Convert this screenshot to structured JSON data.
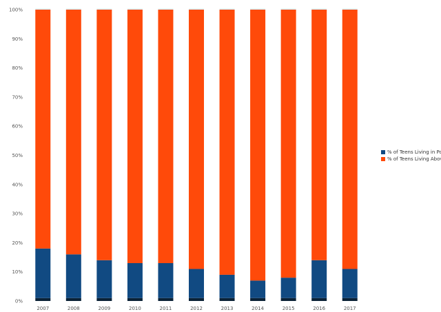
{
  "chart_data": {
    "type": "bar",
    "stacked": true,
    "title": "",
    "xlabel": "",
    "ylabel": "",
    "ylim": [
      0,
      1
    ],
    "y_ticks": [
      "0%",
      "10%",
      "20%",
      "30%",
      "40%",
      "50%",
      "60%",
      "70%",
      "80%",
      "90%",
      "100%"
    ],
    "categories": [
      "2007",
      "2008",
      "2009",
      "2010",
      "2011",
      "2012",
      "2013",
      "2014",
      "2015",
      "2016",
      "2017"
    ],
    "series": [
      {
        "color": "#0b2236",
        "values": [
          0.01,
          0.01,
          0.01,
          0.01,
          0.01,
          0.01,
          0.01,
          0.01,
          0.01,
          0.01,
          0.01
        ]
      },
      {
        "color": "#114a82",
        "values": [
          0.17,
          0.15,
          0.13,
          0.12,
          0.12,
          0.1,
          0.08,
          0.06,
          0.07,
          0.13,
          0.1
        ]
      },
      {
        "color": "#ff4a0a",
        "values": [
          0.82,
          0.84,
          0.86,
          0.87,
          0.87,
          0.89,
          0.91,
          0.93,
          0.92,
          0.86,
          0.89
        ]
      }
    ],
    "legend": {
      "position": "right",
      "entries": [
        "% of Teens Living in Poverty",
        "% of Teens Living Above Poverty"
      ]
    },
    "grid": false
  }
}
